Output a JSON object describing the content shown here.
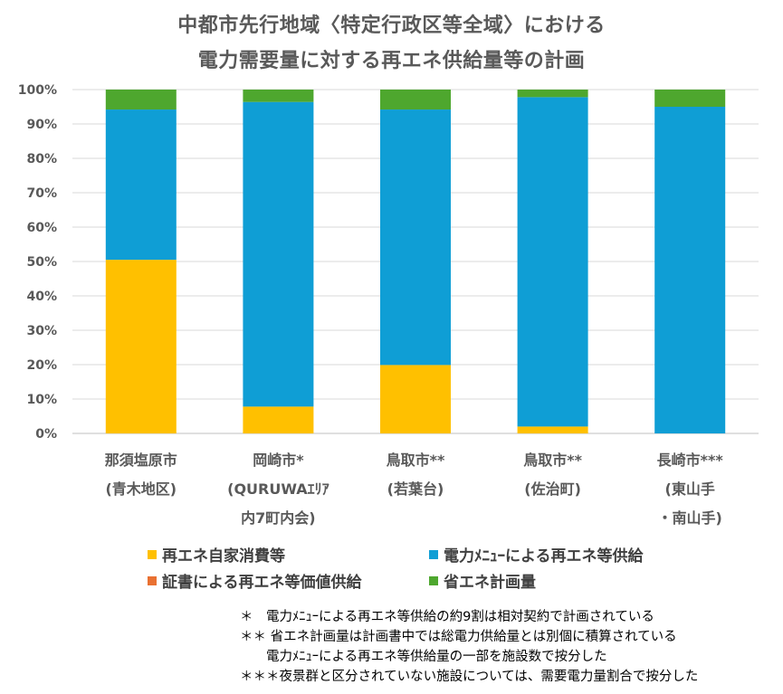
{
  "title_line1": "中都市先行地域〈特定行政区等全域〉における",
  "title_line2": "電力需要量に対する再エネ供給量等の計画",
  "chart_data": {
    "type": "bar",
    "stacked": true,
    "categories": [
      [
        "那須塩原市",
        "(青木地区)"
      ],
      [
        "岡崎市*",
        "(QURUWAｴﾘｱ",
        "内7町内会)"
      ],
      [
        "鳥取市**",
        "(若葉台)"
      ],
      [
        "鳥取市**",
        "(佐治町)"
      ],
      [
        "長崎市***",
        "(東山手",
        "・南山手)"
      ]
    ],
    "series": [
      {
        "name": "再エネ自家消費等",
        "color": "#FFC000",
        "values": [
          50.5,
          7.8,
          19.9,
          2.0,
          0.0
        ]
      },
      {
        "name": "電力ﾒﾆｭｰによる再エネ等供給",
        "color": "#0F9ED5",
        "values": [
          43.7,
          88.6,
          74.3,
          95.8,
          95.0
        ]
      },
      {
        "name": "証書による再エネ等価値供給",
        "color": "#E97132",
        "values": [
          0,
          0,
          0,
          0,
          0
        ]
      },
      {
        "name": "省エネ計画量",
        "color": "#4EA72E",
        "values": [
          5.8,
          3.6,
          5.8,
          2.2,
          5.0
        ]
      }
    ],
    "ylim": [
      0,
      100
    ],
    "yticks": [
      "0%",
      "10%",
      "20%",
      "30%",
      "40%",
      "50%",
      "60%",
      "70%",
      "80%",
      "90%",
      "100%"
    ],
    "grid": true,
    "legend_placement": "bottom"
  },
  "notes": [
    "＊　電力ﾒﾆｭｰによる再エネ等供給の約9割は相対契約で計画されている",
    "＊＊ 省エネ計画量は計画書中では総電力供給量とは別個に積算されている",
    "　　電力ﾒﾆｭｰによる再エネ等供給量の一部を施設数で按分した",
    "＊＊＊夜景群と区分されていない施設については、需要電力量割合で按分した"
  ]
}
